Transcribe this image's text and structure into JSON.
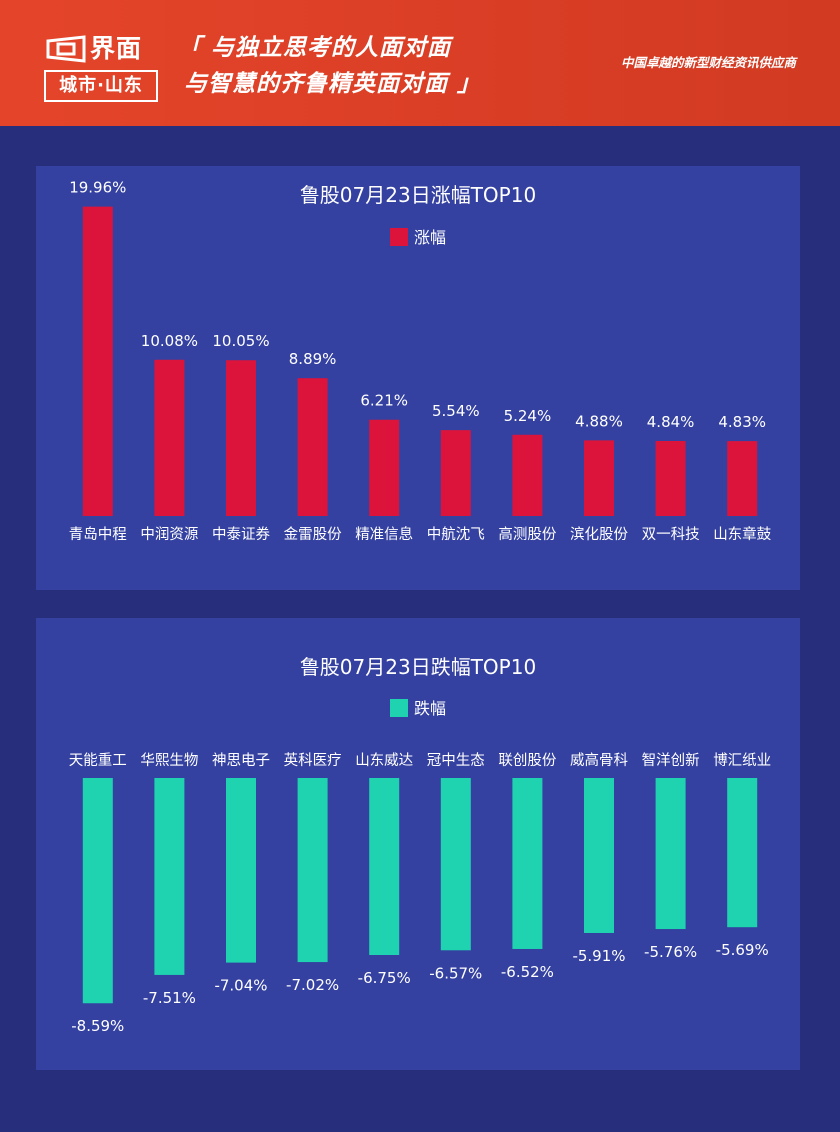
{
  "header": {
    "logo_word": "界面",
    "logo_sub": "城市·山东",
    "slogan_line1": "「 与独立思考的人面对面",
    "slogan_line2": "与智慧的齐鲁精英面对面 」",
    "tagline": "中国卓越的新型财经资讯供应商"
  },
  "colors": {
    "header": "#dc4127",
    "background": "#272f7d",
    "panel": "#3441a0",
    "gain": "#dc143c",
    "loss": "#1fd3b0"
  },
  "chart_data": [
    {
      "type": "bar",
      "title": "鲁股07月23日涨幅TOP10",
      "legend": "涨幅",
      "legend_position": "top-center",
      "categories": [
        "青岛中程",
        "中润资源",
        "中泰证券",
        "金雷股份",
        "精准信息",
        "中航沈飞",
        "高测股份",
        "滨化股份",
        "双一科技",
        "山东章鼓"
      ],
      "values": [
        19.96,
        10.08,
        10.05,
        8.89,
        6.21,
        5.54,
        5.24,
        4.88,
        4.84,
        4.83
      ],
      "labels": [
        "19.96%",
        "10.08%",
        "10.05%",
        "8.89%",
        "6.21%",
        "5.54%",
        "5.24%",
        "4.88%",
        "4.84%",
        "4.83%"
      ],
      "ylim": [
        0,
        20
      ],
      "grid": false
    },
    {
      "type": "bar",
      "title": "鲁股07月23日跌幅TOP10",
      "legend": "跌幅",
      "legend_position": "top-center",
      "categories": [
        "天能重工",
        "华熙生物",
        "神思电子",
        "英科医疗",
        "山东威达",
        "冠中生态",
        "联创股份",
        "威高骨科",
        "智洋创新",
        "博汇纸业"
      ],
      "values": [
        -8.59,
        -7.51,
        -7.04,
        -7.02,
        -6.75,
        -6.57,
        -6.52,
        -5.91,
        -5.76,
        -5.69
      ],
      "labels": [
        "-8.59%",
        "-7.51%",
        "-7.04%",
        "-7.02%",
        "-6.75%",
        "-6.57%",
        "-6.52%",
        "-5.91%",
        "-5.76%",
        "-5.69%"
      ],
      "ylim": [
        -9,
        0
      ],
      "grid": false
    }
  ]
}
